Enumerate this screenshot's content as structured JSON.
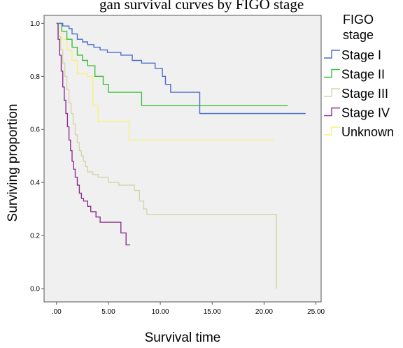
{
  "caption": "gan survival curves by FIGO stage",
  "chart_data": {
    "type": "line",
    "step": true,
    "xlabel": "Survival time",
    "ylabel": "Surviving proportion",
    "xlim": [
      -1.2,
      25.5
    ],
    "ylim": [
      -0.05,
      1.03
    ],
    "xticks": [
      ".00",
      "5.00",
      "10.00",
      "15.00",
      "20.00",
      "25.00"
    ],
    "xtick_values": [
      0,
      5,
      10,
      15,
      20,
      25
    ],
    "yticks": [
      "0.0",
      "0.2",
      "0.4",
      "0.6",
      "0.8",
      "1.0"
    ],
    "ytick_values": [
      0,
      0.2,
      0.4,
      0.6,
      0.8,
      1.0
    ],
    "background_color": "#f0f0f0",
    "grid": false,
    "legend": {
      "title_line1": "FIGO",
      "title_line2": "stage",
      "position": "right"
    },
    "series": [
      {
        "name": "Stage I",
        "color": "#4a6fc7",
        "points": [
          [
            0,
            1.0
          ],
          [
            0.6,
            0.99
          ],
          [
            1.2,
            0.98
          ],
          [
            1.5,
            0.96
          ],
          [
            2.0,
            0.94
          ],
          [
            2.5,
            0.93
          ],
          [
            3.0,
            0.92
          ],
          [
            3.6,
            0.91
          ],
          [
            4.2,
            0.9
          ],
          [
            4.9,
            0.89
          ],
          [
            6.2,
            0.88
          ],
          [
            7.3,
            0.86
          ],
          [
            8.2,
            0.85
          ],
          [
            9.5,
            0.83
          ],
          [
            10.2,
            0.8
          ],
          [
            10.5,
            0.77
          ],
          [
            11.0,
            0.74
          ],
          [
            13.8,
            0.66
          ],
          [
            24.0,
            0.66
          ]
        ]
      },
      {
        "name": "Stage II",
        "color": "#3cbf3c",
        "points": [
          [
            0,
            1.0
          ],
          [
            0.5,
            0.97
          ],
          [
            1.0,
            0.94
          ],
          [
            1.5,
            0.91
          ],
          [
            2.0,
            0.88
          ],
          [
            2.5,
            0.86
          ],
          [
            3.0,
            0.84
          ],
          [
            3.7,
            0.8
          ],
          [
            4.5,
            0.77
          ],
          [
            5.0,
            0.74
          ],
          [
            8.2,
            0.69
          ],
          [
            22.3,
            0.69
          ]
        ]
      },
      {
        "name": "Stage III",
        "color": "#d6d5a8",
        "points": [
          [
            0,
            1.0
          ],
          [
            0.2,
            0.95
          ],
          [
            0.4,
            0.9
          ],
          [
            0.6,
            0.85
          ],
          [
            0.8,
            0.8
          ],
          [
            1.0,
            0.75
          ],
          [
            1.2,
            0.7
          ],
          [
            1.4,
            0.66
          ],
          [
            1.6,
            0.62
          ],
          [
            1.8,
            0.58
          ],
          [
            2.0,
            0.55
          ],
          [
            2.2,
            0.52
          ],
          [
            2.4,
            0.5
          ],
          [
            2.6,
            0.48
          ],
          [
            2.8,
            0.46
          ],
          [
            3.0,
            0.44
          ],
          [
            3.5,
            0.43
          ],
          [
            4.0,
            0.42
          ],
          [
            5.0,
            0.4
          ],
          [
            6.0,
            0.39
          ],
          [
            7.5,
            0.37
          ],
          [
            8.0,
            0.33
          ],
          [
            8.4,
            0.3
          ],
          [
            8.7,
            0.28
          ],
          [
            21.0,
            0.28
          ],
          [
            21.2,
            0.0
          ]
        ]
      },
      {
        "name": "Stage IV",
        "color": "#8e2f8e",
        "points": [
          [
            0,
            1.0
          ],
          [
            0.15,
            0.94
          ],
          [
            0.3,
            0.88
          ],
          [
            0.45,
            0.82
          ],
          [
            0.6,
            0.76
          ],
          [
            0.75,
            0.71
          ],
          [
            0.9,
            0.66
          ],
          [
            1.05,
            0.61
          ],
          [
            1.2,
            0.56
          ],
          [
            1.35,
            0.52
          ],
          [
            1.5,
            0.48
          ],
          [
            1.65,
            0.45
          ],
          [
            1.8,
            0.42
          ],
          [
            2.0,
            0.39
          ],
          [
            2.2,
            0.36
          ],
          [
            2.4,
            0.34
          ],
          [
            2.6,
            0.33
          ],
          [
            3.0,
            0.31
          ],
          [
            3.3,
            0.29
          ],
          [
            3.8,
            0.27
          ],
          [
            4.2,
            0.25
          ],
          [
            5.6,
            0.25
          ],
          [
            6.2,
            0.21
          ],
          [
            6.7,
            0.165
          ],
          [
            7.1,
            0.165
          ]
        ]
      },
      {
        "name": "Unknown",
        "color": "#f7f27a",
        "points": [
          [
            0,
            1.0
          ],
          [
            0.5,
            0.94
          ],
          [
            1.0,
            0.9
          ],
          [
            1.5,
            0.86
          ],
          [
            2.0,
            0.81
          ],
          [
            3.0,
            0.8
          ],
          [
            3.5,
            0.69
          ],
          [
            4.0,
            0.63
          ],
          [
            7.0,
            0.56
          ],
          [
            21.0,
            0.56
          ]
        ]
      }
    ]
  }
}
